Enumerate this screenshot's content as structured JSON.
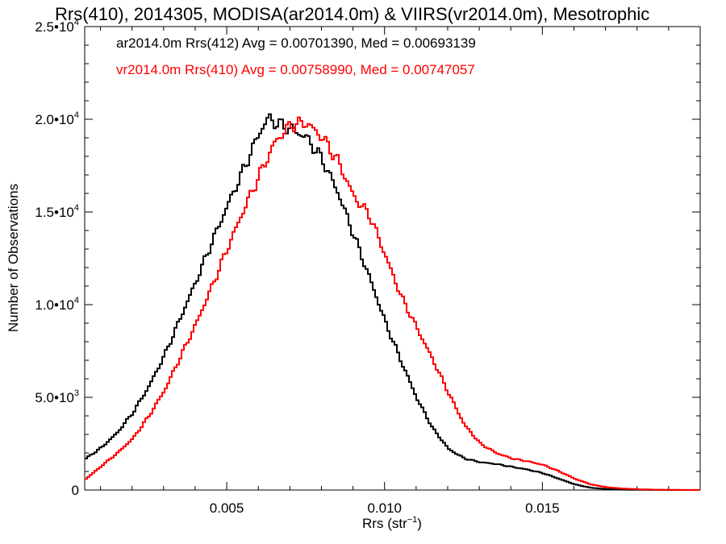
{
  "chart_data": {
    "type": "line",
    "title": "Rrs(410), 2014305, MODISA(ar2014.0m) & VIIRS(vr2014.0m), Mesotrophic",
    "xlabel": "Rrs (str⁻¹)",
    "ylabel": "Number of Observations",
    "xlim": [
      0.0005,
      0.02
    ],
    "ylim": [
      0,
      25000
    ],
    "x_ticks": [
      {
        "value": 0.005,
        "label": "0.005"
      },
      {
        "value": 0.01,
        "label": "0.010"
      },
      {
        "value": 0.015,
        "label": "0.015"
      }
    ],
    "y_ticks": [
      {
        "value": 0,
        "mant": "0",
        "exp": ""
      },
      {
        "value": 5000,
        "mant": "5.0•10",
        "exp": "3"
      },
      {
        "value": 10000,
        "mant": "1.0•10",
        "exp": "4"
      },
      {
        "value": 15000,
        "mant": "1.5•10",
        "exp": "4"
      },
      {
        "value": 20000,
        "mant": "2.0•10",
        "exp": "4"
      },
      {
        "value": 25000,
        "mant": "2.5•10",
        "exp": "4"
      }
    ],
    "grid": false,
    "legend_position": "top-left",
    "annotations": [
      {
        "text": "ar2014.0m Rrs(412) Avg = 0.00701390, Med = 0.00693139",
        "color": "#000000"
      },
      {
        "text": "vr2014.0m Rrs(410) Avg = 0.00758990, Med = 0.00747057",
        "color": "#ff0000"
      }
    ],
    "series": [
      {
        "color": "#000000",
        "x": [
          0.0005,
          0.001,
          0.0015,
          0.002,
          0.0025,
          0.003,
          0.0035,
          0.004,
          0.0045,
          0.005,
          0.0055,
          0.006,
          0.0063,
          0.0065,
          0.007,
          0.0075,
          0.008,
          0.0085,
          0.009,
          0.0095,
          0.01,
          0.0105,
          0.011,
          0.0115,
          0.012,
          0.0125,
          0.013,
          0.0135,
          0.014,
          0.0145,
          0.015,
          0.0155,
          0.016,
          0.0165,
          0.017,
          0.0175,
          0.018,
          0.0185,
          0.019,
          0.02
        ],
        "y": [
          1700,
          2300,
          3100,
          4200,
          5600,
          7300,
          9300,
          11300,
          13400,
          15400,
          17300,
          19300,
          20100,
          19800,
          19500,
          19000,
          17800,
          16000,
          13700,
          11400,
          9000,
          6900,
          4900,
          3300,
          2200,
          1700,
          1500,
          1400,
          1250,
          1100,
          900,
          600,
          300,
          120,
          50,
          20,
          10,
          5,
          2,
          0
        ]
      },
      {
        "color": "#ff0000",
        "x": [
          0.0005,
          0.001,
          0.0015,
          0.002,
          0.0025,
          0.003,
          0.0035,
          0.004,
          0.0045,
          0.005,
          0.0055,
          0.006,
          0.0065,
          0.007,
          0.0075,
          0.008,
          0.0085,
          0.009,
          0.0095,
          0.01,
          0.0105,
          0.011,
          0.0115,
          0.012,
          0.0125,
          0.013,
          0.0135,
          0.014,
          0.0145,
          0.015,
          0.0155,
          0.016,
          0.0165,
          0.017,
          0.0175,
          0.018,
          0.0185,
          0.019,
          0.02
        ],
        "y": [
          600,
          1300,
          2000,
          2800,
          4000,
          5400,
          7200,
          9000,
          11000,
          13100,
          15100,
          17000,
          18800,
          19700,
          19800,
          19000,
          17700,
          15800,
          14800,
          12600,
          10400,
          8700,
          7000,
          5200,
          3500,
          2500,
          2000,
          1700,
          1550,
          1350,
          1000,
          600,
          300,
          150,
          80,
          40,
          20,
          10,
          0
        ]
      }
    ]
  }
}
